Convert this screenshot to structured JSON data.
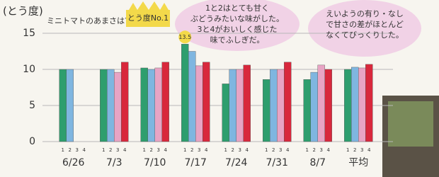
{
  "chart_data": {
    "type": "bar",
    "title": "ミニトマトのあまさは?",
    "y_label": "(とう度)",
    "categories": [
      "6/26",
      "7/3",
      "7/10",
      "7/17",
      "7/24",
      "7/31",
      "8/7",
      "平均"
    ],
    "series": [
      {
        "name": "1",
        "color": "#2e9e6e",
        "values": [
          10,
          10,
          10.2,
          13.5,
          8,
          8.6,
          8.6,
          10
        ],
        "value_labels": [
          null,
          null,
          null,
          "13.5",
          null,
          null,
          null,
          null
        ]
      },
      {
        "name": "2",
        "color": "#7fb6e0",
        "values": [
          10,
          10,
          10,
          12.5,
          10,
          10,
          9.6,
          10.3
        ]
      },
      {
        "name": "3",
        "color": "#e8a4c4",
        "values": [
          null,
          9.6,
          10.2,
          10.5,
          10,
          10,
          10.6,
          10.2
        ]
      },
      {
        "name": "4",
        "color": "#d8283c",
        "values": [
          null,
          11,
          11,
          11,
          10.6,
          11,
          10,
          10.7
        ]
      }
    ],
    "ylim": [
      0,
      15
    ],
    "yticks": [
      0,
      5,
      10,
      15
    ],
    "grid": true,
    "annotations": [
      "とう度No.1"
    ],
    "notes": [
      {
        "lines": [
          "1と2はとても甘く",
          "ぶどうみたいな味がした。",
          "3と4がおいしく感じた",
          "味でふしぎだ。"
        ]
      },
      {
        "lines": [
          "えいようの有り・なし",
          "で甘さの差がほとんど",
          "なくてびっくりした。"
        ]
      }
    ]
  }
}
